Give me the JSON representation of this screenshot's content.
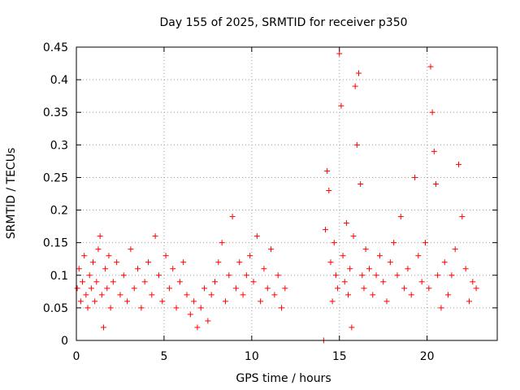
{
  "chart_data": {
    "type": "scatter",
    "title": "Day 155 of 2025, SRMTID for receiver p350",
    "xlabel": "GPS time / hours",
    "ylabel": "SRMTID / TECUs",
    "xlim": [
      0,
      24
    ],
    "ylim": [
      0,
      0.45
    ],
    "grid": true,
    "marker": "+",
    "color": "#ff0000",
    "x_ticks": [
      0,
      5,
      10,
      15,
      20
    ],
    "x_tick_labels": [
      "0",
      "5",
      "10",
      "15",
      "20"
    ],
    "y_ticks": [
      0,
      0.05,
      0.1,
      0.15,
      0.2,
      0.25,
      0.3,
      0.35,
      0.4,
      0.45
    ],
    "y_tick_labels": [
      "0",
      "0.05",
      "0.1",
      "0.15",
      "0.2",
      "0.25",
      "0.3",
      "0.35",
      "0.4",
      "0.45"
    ],
    "series": [
      {
        "name": "SRMTID",
        "points": [
          [
            0.05,
            0.08
          ],
          [
            0.15,
            0.11
          ],
          [
            0.25,
            0.06
          ],
          [
            0.35,
            0.09
          ],
          [
            0.45,
            0.13
          ],
          [
            0.55,
            0.07
          ],
          [
            0.65,
            0.05
          ],
          [
            0.75,
            0.1
          ],
          [
            0.85,
            0.08
          ],
          [
            0.95,
            0.12
          ],
          [
            1.05,
            0.06
          ],
          [
            1.15,
            0.09
          ],
          [
            1.25,
            0.14
          ],
          [
            1.35,
            0.16
          ],
          [
            1.45,
            0.07
          ],
          [
            1.55,
            0.02
          ],
          [
            1.65,
            0.11
          ],
          [
            1.75,
            0.08
          ],
          [
            1.85,
            0.13
          ],
          [
            1.95,
            0.05
          ],
          [
            2.1,
            0.09
          ],
          [
            2.3,
            0.12
          ],
          [
            2.5,
            0.07
          ],
          [
            2.7,
            0.1
          ],
          [
            2.9,
            0.06
          ],
          [
            3.1,
            0.14
          ],
          [
            3.3,
            0.08
          ],
          [
            3.5,
            0.11
          ],
          [
            3.7,
            0.05
          ],
          [
            3.9,
            0.09
          ],
          [
            4.1,
            0.12
          ],
          [
            4.3,
            0.07
          ],
          [
            4.5,
            0.16
          ],
          [
            4.7,
            0.1
          ],
          [
            4.9,
            0.06
          ],
          [
            5.1,
            0.13
          ],
          [
            5.3,
            0.08
          ],
          [
            5.5,
            0.11
          ],
          [
            5.7,
            0.05
          ],
          [
            5.9,
            0.09
          ],
          [
            6.1,
            0.12
          ],
          [
            6.3,
            0.07
          ],
          [
            6.5,
            0.04
          ],
          [
            6.7,
            0.06
          ],
          [
            6.9,
            0.02
          ],
          [
            7.1,
            0.05
          ],
          [
            7.3,
            0.08
          ],
          [
            7.5,
            0.03
          ],
          [
            7.7,
            0.07
          ],
          [
            7.9,
            0.09
          ],
          [
            8.1,
            0.12
          ],
          [
            8.3,
            0.15
          ],
          [
            8.5,
            0.06
          ],
          [
            8.7,
            0.1
          ],
          [
            8.9,
            0.19
          ],
          [
            9.1,
            0.08
          ],
          [
            9.3,
            0.12
          ],
          [
            9.5,
            0.07
          ],
          [
            9.7,
            0.1
          ],
          [
            9.9,
            0.13
          ],
          [
            10.1,
            0.09
          ],
          [
            10.3,
            0.16
          ],
          [
            10.5,
            0.06
          ],
          [
            10.7,
            0.11
          ],
          [
            10.9,
            0.08
          ],
          [
            11.1,
            0.14
          ],
          [
            11.3,
            0.07
          ],
          [
            11.5,
            0.1
          ],
          [
            11.7,
            0.05
          ],
          [
            11.9,
            0.08
          ],
          [
            14.1,
            0.0
          ],
          [
            14.2,
            0.17
          ],
          [
            14.3,
            0.26
          ],
          [
            14.4,
            0.23
          ],
          [
            14.5,
            0.12
          ],
          [
            14.6,
            0.06
          ],
          [
            14.7,
            0.15
          ],
          [
            14.8,
            0.1
          ],
          [
            14.9,
            0.08
          ],
          [
            15.0,
            0.44
          ],
          [
            15.1,
            0.36
          ],
          [
            15.2,
            0.13
          ],
          [
            15.3,
            0.09
          ],
          [
            15.4,
            0.18
          ],
          [
            15.5,
            0.07
          ],
          [
            15.6,
            0.11
          ],
          [
            15.7,
            0.02
          ],
          [
            15.8,
            0.16
          ],
          [
            15.9,
            0.39
          ],
          [
            16.0,
            0.3
          ],
          [
            16.1,
            0.41
          ],
          [
            16.2,
            0.24
          ],
          [
            16.3,
            0.1
          ],
          [
            16.4,
            0.08
          ],
          [
            16.5,
            0.14
          ],
          [
            16.7,
            0.11
          ],
          [
            16.9,
            0.07
          ],
          [
            17.1,
            0.1
          ],
          [
            17.3,
            0.13
          ],
          [
            17.5,
            0.09
          ],
          [
            17.7,
            0.06
          ],
          [
            17.9,
            0.12
          ],
          [
            18.1,
            0.15
          ],
          [
            18.3,
            0.1
          ],
          [
            18.5,
            0.19
          ],
          [
            18.7,
            0.08
          ],
          [
            18.9,
            0.11
          ],
          [
            19.1,
            0.07
          ],
          [
            19.3,
            0.25
          ],
          [
            19.5,
            0.13
          ],
          [
            19.7,
            0.09
          ],
          [
            19.9,
            0.15
          ],
          [
            20.1,
            0.08
          ],
          [
            20.2,
            0.42
          ],
          [
            20.3,
            0.35
          ],
          [
            20.4,
            0.29
          ],
          [
            20.5,
            0.24
          ],
          [
            20.6,
            0.1
          ],
          [
            20.8,
            0.05
          ],
          [
            21.0,
            0.12
          ],
          [
            21.2,
            0.07
          ],
          [
            21.4,
            0.1
          ],
          [
            21.6,
            0.14
          ],
          [
            21.8,
            0.27
          ],
          [
            22.0,
            0.19
          ],
          [
            22.2,
            0.11
          ],
          [
            22.4,
            0.06
          ],
          [
            22.6,
            0.09
          ],
          [
            22.8,
            0.08
          ]
        ]
      }
    ]
  }
}
